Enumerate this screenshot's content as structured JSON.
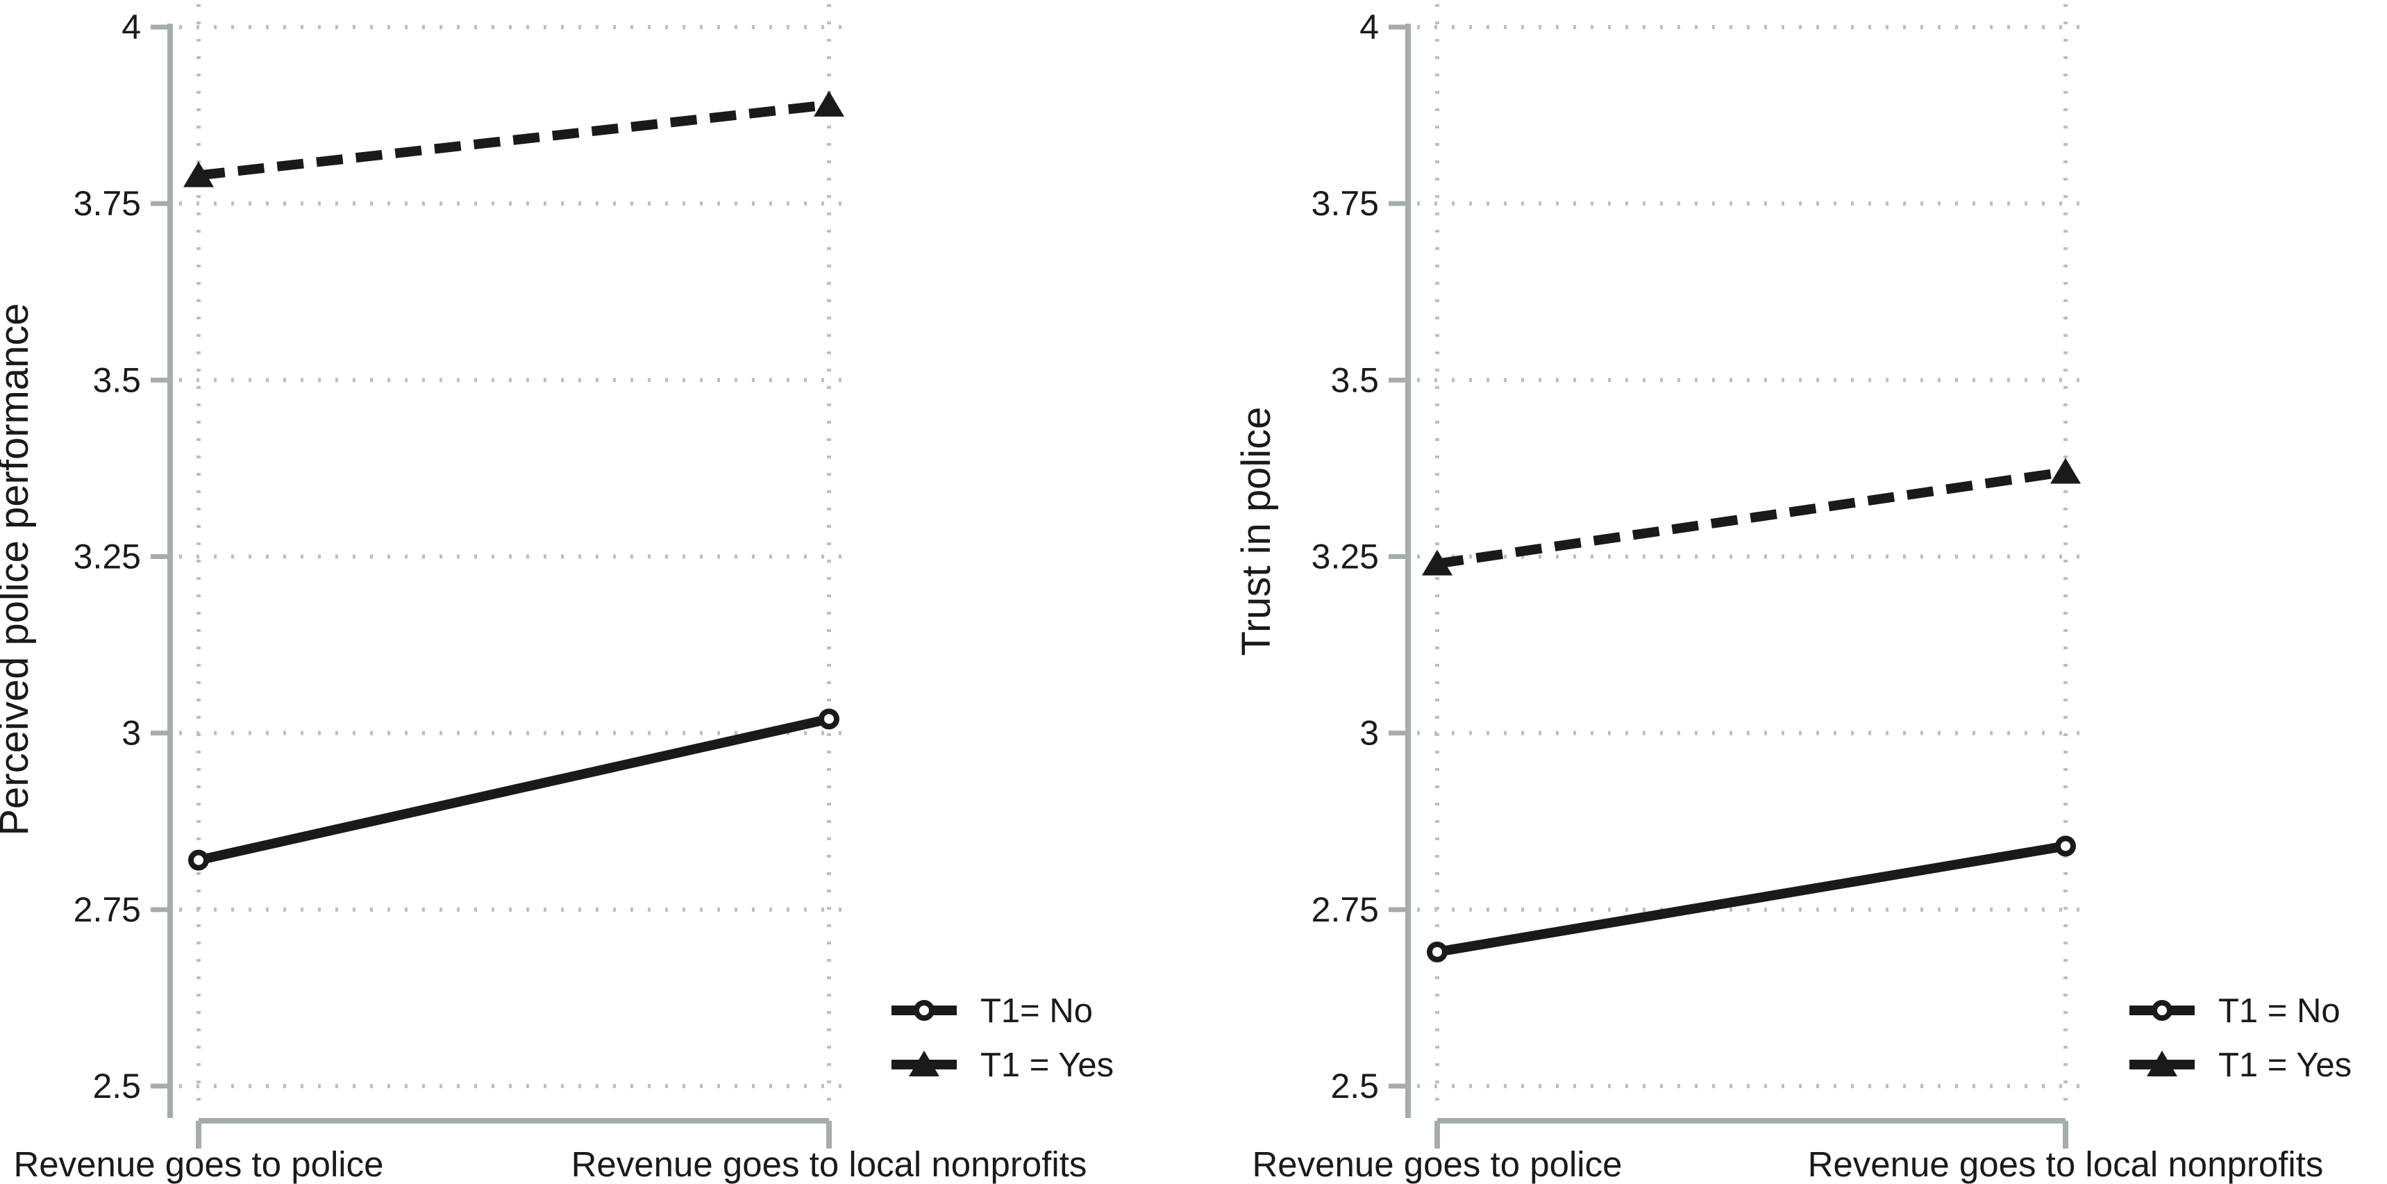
{
  "figure": {
    "background": "#ffffff",
    "text_color": "#1a1a1a",
    "axis_color": "#a6ada9",
    "grid_color": "#bac1bc",
    "series_color": "#1a1a1a",
    "marker_fill": "#ffffff"
  },
  "chart_data": [
    {
      "type": "line",
      "panel": "left",
      "title": "",
      "xlabel": "",
      "ylabel": "Perceived police performance",
      "categories": [
        "Revenue goes to police",
        "Revenue goes to local nonprofits"
      ],
      "series": [
        {
          "name": "T1= No",
          "values": [
            2.82,
            3.02
          ],
          "line_style": "solid",
          "marker": "circle"
        },
        {
          "name": "T1 = Yes",
          "values": [
            3.79,
            3.89
          ],
          "line_style": "dashed",
          "marker": "triangle"
        }
      ],
      "ylim": [
        2.5,
        4
      ],
      "yticks": [
        "2.5",
        "2.75",
        "3",
        "3.25",
        "3.5",
        "3.75",
        "4"
      ],
      "grid": true,
      "legend_position": "bottom-right"
    },
    {
      "type": "line",
      "panel": "right",
      "title": "",
      "xlabel": "",
      "ylabel": "Trust in police",
      "categories": [
        "Revenue goes to police",
        "Revenue goes to local nonprofits"
      ],
      "series": [
        {
          "name": "T1 = No",
          "values": [
            2.69,
            2.84
          ],
          "line_style": "solid",
          "marker": "circle"
        },
        {
          "name": "T1 = Yes",
          "values": [
            3.24,
            3.37
          ],
          "line_style": "dashed",
          "marker": "triangle"
        }
      ],
      "ylim": [
        2.5,
        4
      ],
      "yticks": [
        "2.5",
        "2.75",
        "3",
        "3.25",
        "3.5",
        "3.75",
        "4"
      ],
      "grid": true,
      "legend_position": "bottom-right"
    }
  ]
}
